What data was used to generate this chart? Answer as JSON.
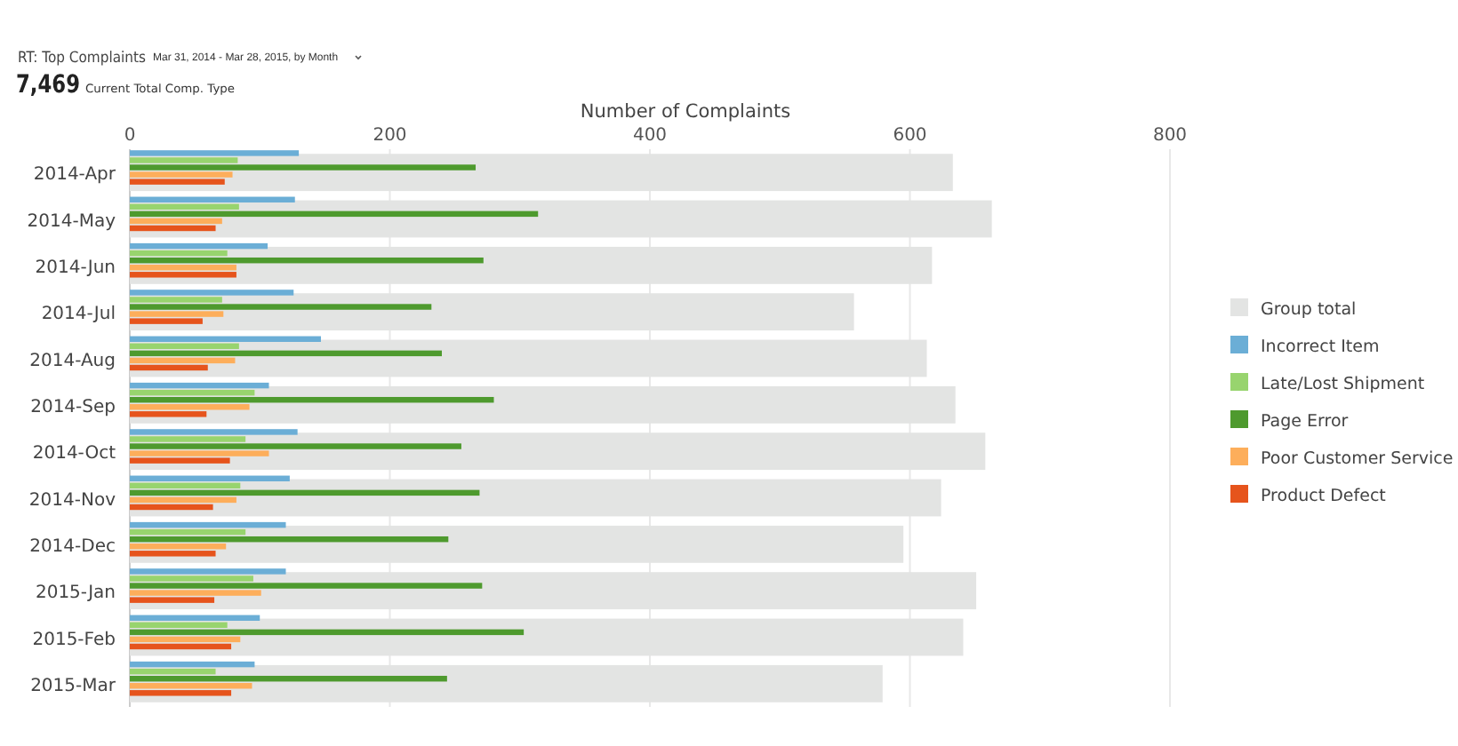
{
  "chart_data": {
    "type": "bar",
    "orientation": "horizontal",
    "title": "RT: Top Complaints",
    "subtitle": "Mar 31, 2014 - Mar 28, 2015, by Month",
    "annotations": [
      "7,469",
      "Current Total Comp. Type"
    ],
    "xlabel": "Number of Complaints",
    "categories": [
      "2014-Apr",
      "2014-May",
      "2014-Jun",
      "2014-Jul",
      "2014-Aug",
      "2014-Sep",
      "2014-Oct",
      "2014-Nov",
      "2014-Dec",
      "2015-Jan",
      "2015-Feb",
      "2015-Mar"
    ],
    "series": [
      {
        "name": "Group total",
        "color": "#e3e4e3",
        "values": [
          633,
          663,
          617,
          557,
          613,
          635,
          658,
          624,
          595,
          651,
          641,
          579
        ]
      },
      {
        "name": "Incorrect Item",
        "color": "#6baed6",
        "values": [
          130,
          127,
          106,
          126,
          147,
          107,
          129,
          123,
          120,
          120,
          100,
          96
        ]
      },
      {
        "name": "Late/Lost Shipment",
        "color": "#98d46e",
        "values": [
          83,
          84,
          75,
          71,
          84,
          96,
          89,
          85,
          89,
          95,
          75,
          66
        ]
      },
      {
        "name": "Page Error",
        "color": "#4e9a2e",
        "values": [
          266,
          314,
          272,
          232,
          240,
          280,
          255,
          269,
          245,
          271,
          303,
          244
        ]
      },
      {
        "name": "Poor Customer Service",
        "color": "#fdae5b",
        "values": [
          79,
          71,
          82,
          72,
          81,
          92,
          107,
          82,
          74,
          101,
          85,
          94
        ]
      },
      {
        "name": "Product Defect",
        "color": "#e6541c",
        "values": [
          73,
          66,
          82,
          56,
          60,
          59,
          77,
          64,
          66,
          65,
          78,
          78
        ]
      }
    ],
    "xlim": [
      0,
      800
    ],
    "xticks": [
      0,
      200,
      400,
      600,
      800
    ],
    "grid": "x",
    "legend": "right"
  }
}
